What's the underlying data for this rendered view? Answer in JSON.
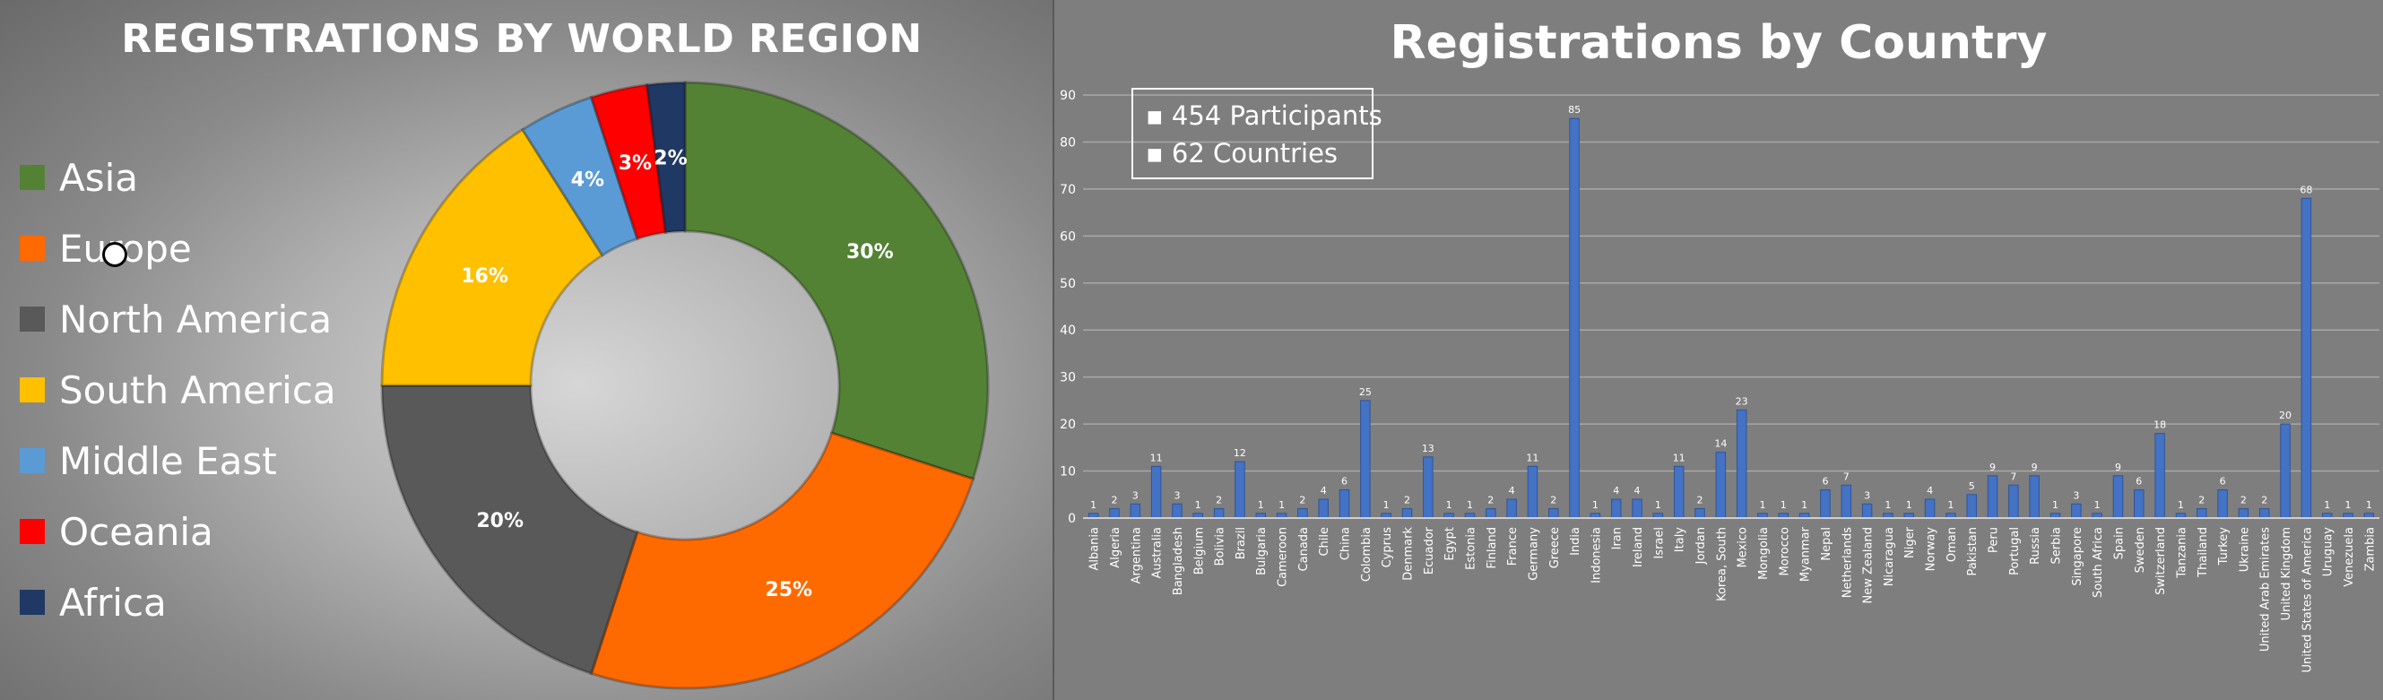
{
  "left": {
    "title": "REGISTRATIONS BY WORLD REGION",
    "legend": [
      {
        "label": "Asia",
        "color": "#548235"
      },
      {
        "label": "Europe",
        "color": "#ff6a00"
      },
      {
        "label": "North America",
        "color": "#595959"
      },
      {
        "label": "South America",
        "color": "#ffc000"
      },
      {
        "label": "Middle East",
        "color": "#5b9bd5"
      },
      {
        "label": "Oceania",
        "color": "#ff0000"
      },
      {
        "label": "Africa",
        "color": "#203864"
      }
    ]
  },
  "right": {
    "title": "Registrations by Country",
    "info": [
      "▪ 454 Participants",
      "▪ 62 Countries"
    ]
  },
  "chart_data": [
    {
      "type": "pie",
      "title": "REGISTRATIONS BY WORLD REGION",
      "categories": [
        "Asia",
        "Europe",
        "North America",
        "South America",
        "Middle East",
        "Oceania",
        "Africa"
      ],
      "values": [
        30,
        25,
        20,
        16,
        4,
        3,
        2
      ],
      "labels": [
        "30%",
        "25%",
        "20%",
        "16%",
        "4%",
        "3%",
        "2%"
      ],
      "colors": [
        "#548235",
        "#ff6a00",
        "#595959",
        "#ffc000",
        "#5b9bd5",
        "#ff0000",
        "#203864"
      ],
      "legend": "left"
    },
    {
      "type": "bar",
      "title": "Registrations by Country",
      "categories": [
        "Albania",
        "Algeria",
        "Argentina",
        "Australia",
        "Bangladesh",
        "Belgium",
        "Bolivia",
        "Brazil",
        "Bulgaria",
        "Cameroon",
        "Canada",
        "Chile",
        "China",
        "Colombia",
        "Cyprus",
        "Denmark",
        "Ecuador",
        "Egypt",
        "Estonia",
        "Finland",
        "France",
        "Germany",
        "Greece",
        "India",
        "Indonesia",
        "Iran",
        "Ireland",
        "Israel",
        "Italy",
        "Jordan",
        "Korea, South",
        "Mexico",
        "Mongolia",
        "Morocco",
        "Myanmar",
        "Nepal",
        "Netherlands",
        "New Zealand",
        "Nicaragua",
        "Niger",
        "Norway",
        "Oman",
        "Pakistan",
        "Peru",
        "Portugal",
        "Russia",
        "Serbia",
        "Singapore",
        "South Africa",
        "Spain",
        "Sweden",
        "Switzerland",
        "Tanzania",
        "Thailand",
        "Turkey",
        "Ukraine",
        "United Arab Emirates",
        "United Kingdom",
        "United States of America",
        "Uruguay",
        "Venezuela",
        "Zambia"
      ],
      "values": [
        1,
        2,
        3,
        11,
        3,
        1,
        2,
        12,
        1,
        1,
        2,
        4,
        6,
        25,
        1,
        2,
        13,
        1,
        1,
        2,
        4,
        11,
        2,
        85,
        1,
        4,
        4,
        1,
        11,
        2,
        14,
        23,
        1,
        1,
        1,
        6,
        7,
        3,
        1,
        1,
        4,
        1,
        5,
        9,
        7,
        9,
        1,
        3,
        1,
        9,
        6,
        18,
        1,
        2,
        6,
        2,
        2,
        20,
        68,
        1,
        1,
        1
      ],
      "ylim": [
        0,
        90
      ],
      "yticks": [
        0,
        10,
        20,
        30,
        40,
        50,
        60,
        70,
        80,
        90
      ],
      "grid": true,
      "bar_color": "#4472c4"
    }
  ]
}
